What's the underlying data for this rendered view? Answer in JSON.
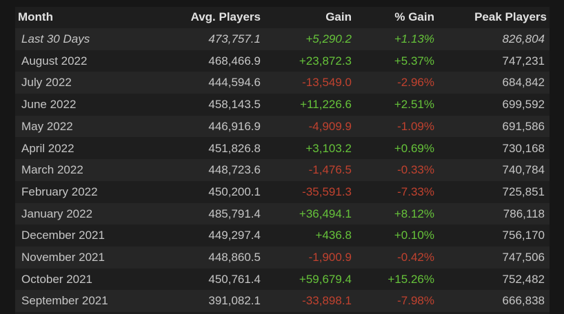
{
  "table": {
    "header": [
      "Month",
      "Avg. Players",
      "Gain",
      "% Gain",
      "Peak Players"
    ],
    "rows": [
      [
        "Last 30 Days",
        "473,757.1",
        "+5,290.2",
        "+1.13%",
        "826,804"
      ],
      [
        "August 2022",
        "468,466.9",
        "+23,872.3",
        "+5.37%",
        "747,231"
      ],
      [
        "July 2022",
        "444,594.6",
        "-13,549.0",
        "-2.96%",
        "684,842"
      ],
      [
        "June 2022",
        "458,143.5",
        "+11,226.6",
        "+2.51%",
        "699,592"
      ],
      [
        "May 2022",
        "446,916.9",
        "-4,909.9",
        "-1.09%",
        "691,586"
      ],
      [
        "April 2022",
        "451,826.8",
        "+3,103.2",
        "+0.69%",
        "730,168"
      ],
      [
        "March 2022",
        "448,723.6",
        "-1,476.5",
        "-0.33%",
        "740,784"
      ],
      [
        "February 2022",
        "450,200.1",
        "-35,591.3",
        "-7.33%",
        "725,851"
      ],
      [
        "January 2022",
        "485,791.4",
        "+36,494.1",
        "+8.12%",
        "786,118"
      ],
      [
        "December 2021",
        "449,297.4",
        "+436.8",
        "+0.10%",
        "756,170"
      ],
      [
        "November 2021",
        "448,860.5",
        "-1,900.9",
        "-0.42%",
        "747,506"
      ],
      [
        "October 2021",
        "450,761.4",
        "+59,679.4",
        "+15.26%",
        "752,482"
      ],
      [
        "September 2021",
        "391,082.1",
        "-33,898.1",
        "-7.98%",
        "666,838"
      ]
    ]
  }
}
